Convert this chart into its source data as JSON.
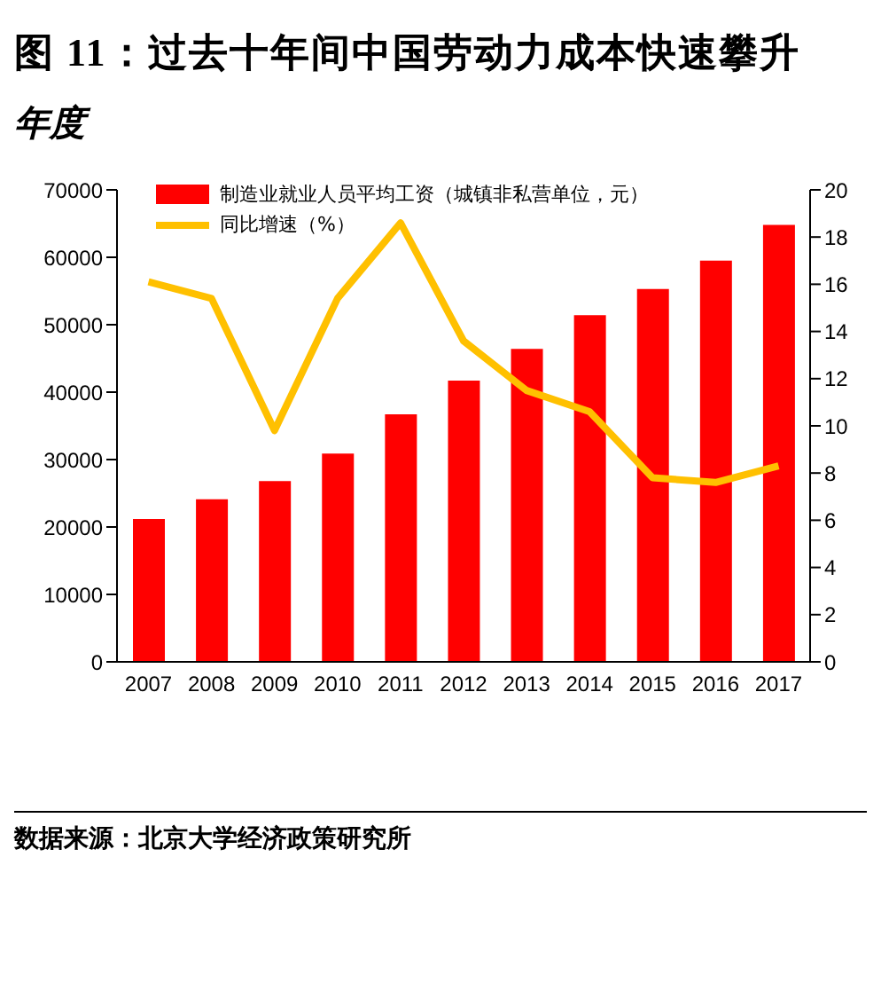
{
  "chart_data": {
    "type": "bar",
    "title": "图 11：过去十年间中国劳动力成本快速攀升",
    "subtitle": "年度",
    "categories": [
      "2007",
      "2008",
      "2009",
      "2010",
      "2011",
      "2012",
      "2013",
      "2014",
      "2015",
      "2016",
      "2017"
    ],
    "series": [
      {
        "name": "制造业就业人员平均工资（城镇非私营单位，元）",
        "color": "#ff0000",
        "values": [
          21200,
          24100,
          26800,
          30900,
          36700,
          41700,
          46400,
          51400,
          55300,
          59500,
          64800
        ]
      },
      {
        "name": "同比增速（%）",
        "type": "line",
        "axis": "y2",
        "color": "#ffc000",
        "values": [
          16.1,
          15.4,
          9.8,
          15.4,
          18.6,
          13.6,
          11.5,
          10.6,
          7.8,
          7.6,
          8.3
        ]
      }
    ],
    "ylim": [
      0,
      70000
    ],
    "yticks": [
      0,
      10000,
      20000,
      30000,
      40000,
      50000,
      60000,
      70000
    ],
    "y2lim": [
      0,
      20
    ],
    "y2ticks": [
      0,
      2,
      4,
      6,
      8,
      10,
      12,
      14,
      16,
      18,
      20
    ],
    "grid": false,
    "legend": "top left",
    "marker": "none",
    "line_style": "solid",
    "annotations": [
      "数据来源：北京大学经济政策研究所"
    ]
  }
}
